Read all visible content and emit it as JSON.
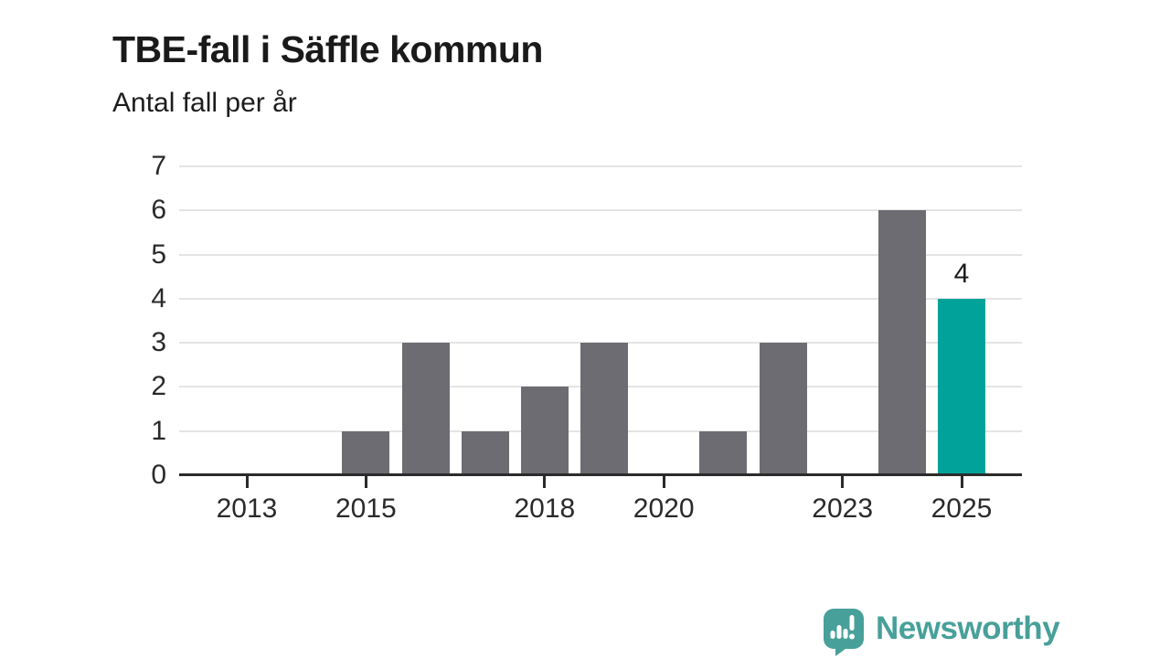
{
  "chart_data": {
    "type": "bar",
    "title": "TBE-fall i Säffle kommun",
    "subtitle": "Antal fall per år",
    "categories": [
      "2013",
      "2014",
      "2015",
      "2016",
      "2017",
      "2018",
      "2019",
      "2020",
      "2021",
      "2022",
      "2023",
      "2024",
      "2025"
    ],
    "values": [
      0,
      0,
      1,
      3,
      1,
      2,
      3,
      0,
      1,
      3,
      0,
      6,
      4
    ],
    "xlabel": "",
    "ylabel": "Antal fall per år",
    "ylim": [
      0,
      7
    ],
    "yticks": [
      0,
      1,
      2,
      3,
      4,
      5,
      6,
      7
    ],
    "xtick_labels": [
      "2013",
      "2015",
      "2018",
      "2020",
      "2023",
      "2025"
    ],
    "grid": true,
    "legend_position": "none",
    "bar_color": "#6D6C72",
    "highlight_color": "#00A29A",
    "highlight_category": "2025",
    "value_labels": [
      {
        "category": "2025",
        "text": "4"
      }
    ]
  },
  "branding": {
    "logo_text": "Newsworthy",
    "logo_icon": "newsworthy-speech-bubble-bar-chart-icon",
    "logo_color": "#48A09A"
  }
}
